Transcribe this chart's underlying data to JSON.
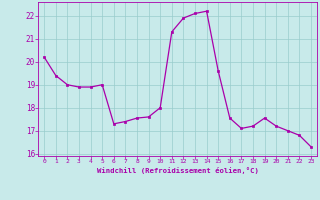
{
  "x_data": [
    0,
    1,
    2,
    3,
    4,
    5,
    6,
    7,
    8,
    9,
    10,
    11,
    12,
    13,
    14,
    15,
    16,
    17,
    18,
    19,
    20,
    21,
    22,
    23
  ],
  "y_data": [
    20.2,
    19.4,
    19.0,
    18.9,
    18.9,
    19.0,
    17.3,
    17.4,
    17.55,
    17.6,
    18.0,
    21.3,
    21.9,
    22.1,
    22.2,
    19.6,
    17.55,
    17.1,
    17.2,
    17.55,
    17.2,
    17.0,
    16.8,
    16.3
  ],
  "line_color": "#aa00aa",
  "marker_color": "#aa00aa",
  "bg_color": "#c8eaea",
  "grid_color": "#99cccc",
  "xlabel": "Windchill (Refroidissement éolien,°C)",
  "ylim_min": 15.9,
  "ylim_max": 22.6,
  "xlim_min": -0.5,
  "xlim_max": 23.5,
  "yticks": [
    16,
    17,
    18,
    19,
    20,
    21,
    22
  ],
  "xticks": [
    0,
    1,
    2,
    3,
    4,
    5,
    6,
    7,
    8,
    9,
    10,
    11,
    12,
    13,
    14,
    15,
    16,
    17,
    18,
    19,
    20,
    21,
    22,
    23
  ],
  "tick_label_color": "#aa00aa",
  "xlabel_color": "#aa00aa",
  "spine_color": "#aa00aa"
}
